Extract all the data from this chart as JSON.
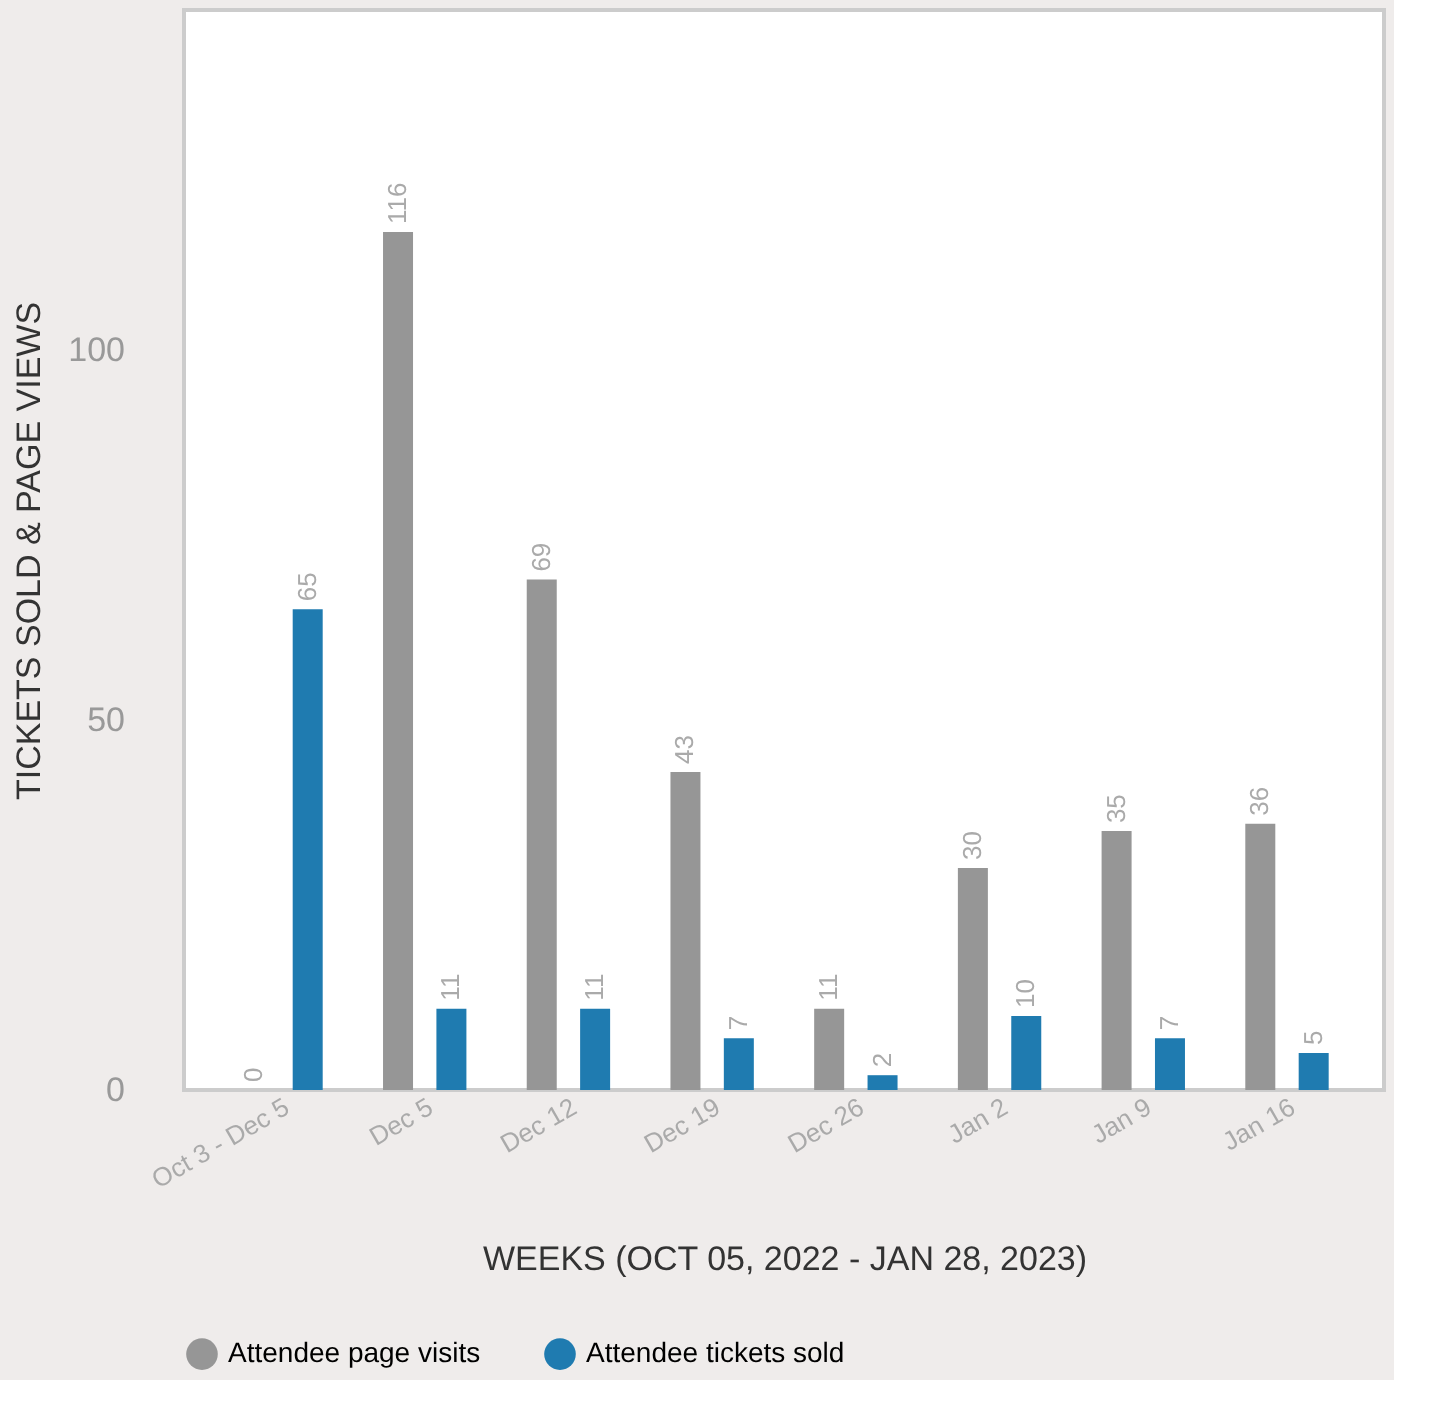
{
  "chart_data": {
    "type": "bar",
    "xlabel": "WEEKS (OCT 05, 2022 - JAN 28, 2023)",
    "ylabel": "TICKETS SOLD & PAGE VIEWS",
    "categories": [
      "Oct 3 - Dec 5",
      "Dec 5",
      "Dec 12",
      "Dec 19",
      "Dec 26",
      "Jan 2",
      "Jan 9",
      "Jan 16"
    ],
    "series": [
      {
        "name": "Attendee page visits",
        "color": "#969696",
        "values": [
          0,
          116,
          69,
          43,
          11,
          30,
          35,
          36
        ]
      },
      {
        "name": "Attendee tickets sold",
        "color": "#1f7bb0",
        "values": [
          65,
          11,
          11,
          7,
          2,
          10,
          7,
          5
        ]
      }
    ],
    "ylim": [
      0,
      146
    ],
    "yticks": [
      0,
      50,
      100
    ],
    "grid": false,
    "legend": "bottom",
    "data_labels": true
  }
}
